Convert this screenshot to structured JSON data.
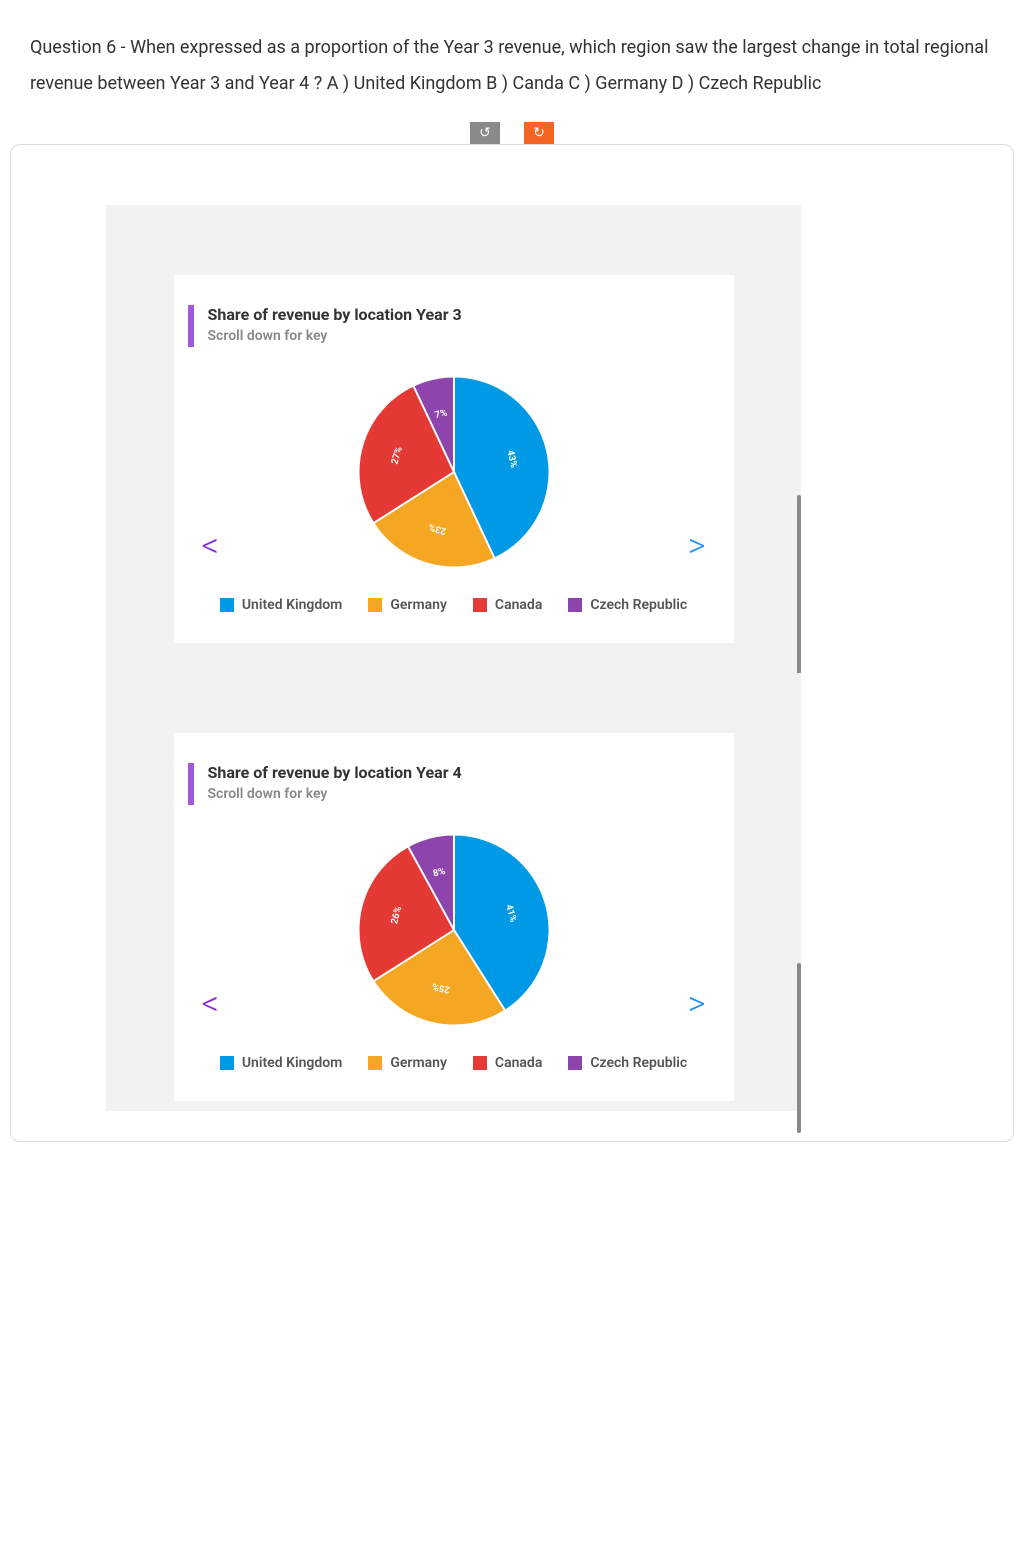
{
  "question": {
    "text": "Question 6 - When expressed as a proportion of the Year 3 revenue, which region saw the largest change in total regional revenue between Year 3 and Year 4 ?  A ) United Kingdom B ) Canda C ) Germany D ) Czech Republic"
  },
  "toolbar": {
    "rotate_ccw": "↺",
    "rotate_cw": "↻"
  },
  "chart1": {
    "type": "pie",
    "title": "Share of revenue by location Year 3",
    "subtitle": "Scroll down for key",
    "accent_color": "#a259d9",
    "radius": 100,
    "label_fontsize": 10,
    "label_color": "#ffffff",
    "slices": [
      {
        "label": "United Kingdom",
        "value": 43,
        "display": "43%",
        "color": "#0099e5"
      },
      {
        "label": "Germany",
        "value": 23,
        "display": "23%",
        "color": "#f5a623"
      },
      {
        "label": "Canada",
        "value": 27,
        "display": "27%",
        "color": "#e53935"
      },
      {
        "label": "Czech Republic",
        "value": 7,
        "display": "7%",
        "color": "#8e44ad"
      }
    ],
    "legend": [
      {
        "label": "United Kingdom",
        "color": "#0099e5"
      },
      {
        "label": "Germany",
        "color": "#f5a623"
      },
      {
        "label": "Canada",
        "color": "#e53935"
      },
      {
        "label": "Czech Republic",
        "color": "#8e44ad"
      }
    ]
  },
  "chart2": {
    "type": "pie",
    "title": "Share of revenue by location Year 4",
    "subtitle": "Scroll down for key",
    "accent_color": "#a259d9",
    "radius": 100,
    "label_fontsize": 10,
    "label_color": "#ffffff",
    "slices": [
      {
        "label": "United Kingdom",
        "value": 41,
        "display": "41%",
        "color": "#0099e5"
      },
      {
        "label": "Germany",
        "value": 25,
        "display": "25%",
        "color": "#f5a623"
      },
      {
        "label": "Canada",
        "value": 26,
        "display": "26%",
        "color": "#e53935"
      },
      {
        "label": "Czech Republic",
        "value": 8,
        "display": "8%",
        "color": "#8e44ad"
      }
    ],
    "legend": [
      {
        "label": "United Kingdom",
        "color": "#0099e5"
      },
      {
        "label": "Germany",
        "color": "#f5a623"
      },
      {
        "label": "Canada",
        "color": "#e53935"
      },
      {
        "label": "Czech Republic",
        "color": "#8e44ad"
      }
    ]
  },
  "nav": {
    "prev": "<",
    "next": ">"
  }
}
